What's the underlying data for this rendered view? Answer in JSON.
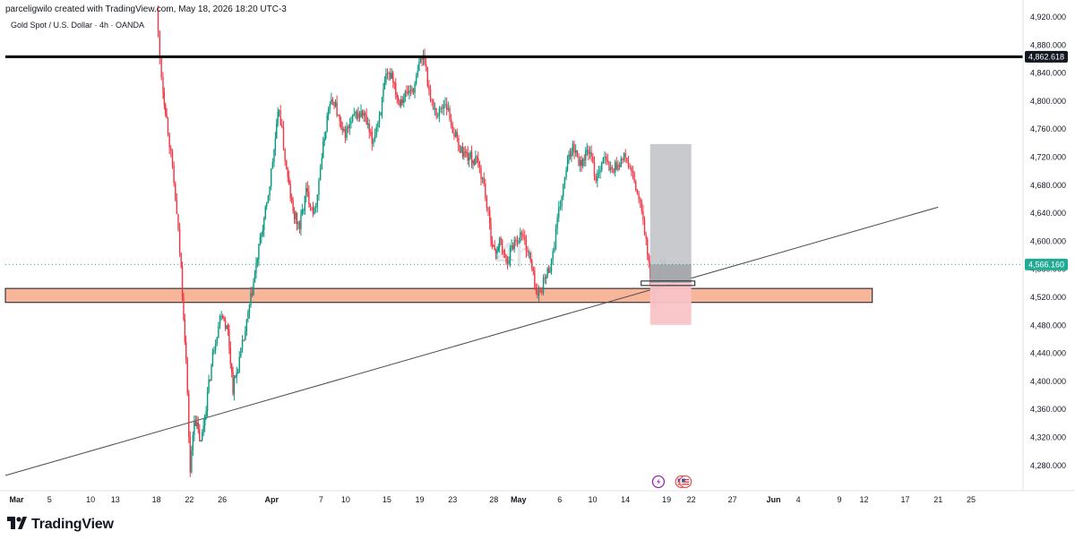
{
  "header": {
    "author_line": "parceligwilo created with TradingView.com, May 18, 2026 18:20 UTC-3",
    "symbol_line": "Gold Spot / U.S. Dollar · 4h · OANDA"
  },
  "watermark": "4h",
  "brand": {
    "name": "TradingView",
    "logo_icon": "tradingview-logo-icon"
  },
  "event_icons": [
    "lightning-icon",
    "us-flag-icon"
  ],
  "colors": {
    "up_candle": "#089981",
    "down_candle": "#f23645",
    "resistance_line": "#000000",
    "zone_fill": "#f7b59a",
    "target_box": "#c6c7cb",
    "stop_box": "#f9c3c7",
    "price_label_current": "#22ab94",
    "price_label_resistance": "#131722"
  },
  "chart_data": {
    "type": "candlestick",
    "symbol": "Gold Spot / U.S. Dollar",
    "timeframe": "4h",
    "exchange": "OANDA",
    "ylim": [
      4240,
      4930
    ],
    "y_ticks": [
      "4,920.000",
      "4,880.000",
      "4,840.000",
      "4,800.000",
      "4,760.000",
      "4,720.000",
      "4,680.000",
      "4,640.000",
      "4,600.000",
      "4,560.000",
      "4,520.000",
      "4,480.000",
      "4,440.000",
      "4,400.000",
      "4,360.000",
      "4,320.000",
      "4,280.000"
    ],
    "x_ticks": [
      {
        "label": "Mar",
        "day": 1,
        "bold": true
      },
      {
        "label": "5",
        "day": 5
      },
      {
        "label": "10",
        "day": 10
      },
      {
        "label": "13",
        "day": 13
      },
      {
        "label": "18",
        "day": 18
      },
      {
        "label": "22",
        "day": 22
      },
      {
        "label": "26",
        "day": 26
      },
      {
        "label": "Apr",
        "day": 32,
        "bold": true
      },
      {
        "label": "7",
        "day": 38
      },
      {
        "label": "10",
        "day": 41
      },
      {
        "label": "15",
        "day": 46
      },
      {
        "label": "19",
        "day": 50
      },
      {
        "label": "23",
        "day": 54
      },
      {
        "label": "28",
        "day": 59
      },
      {
        "label": "May",
        "day": 62,
        "bold": true
      },
      {
        "label": "6",
        "day": 67
      },
      {
        "label": "10",
        "day": 71
      },
      {
        "label": "14",
        "day": 75
      },
      {
        "label": "19",
        "day": 80
      },
      {
        "label": "22",
        "day": 83
      },
      {
        "label": "27",
        "day": 88
      },
      {
        "label": "Jun",
        "day": 93,
        "bold": true
      },
      {
        "label": "4",
        "day": 96
      },
      {
        "label": "9",
        "day": 101
      },
      {
        "label": "12",
        "day": 104
      },
      {
        "label": "17",
        "day": 109
      },
      {
        "label": "21",
        "day": 113
      },
      {
        "label": "25",
        "day": 117
      }
    ],
    "resistance": {
      "price": 4862.618,
      "label": "4,862.618"
    },
    "current_price": {
      "price": 4566.16,
      "label": "4,566.160"
    },
    "demand_zone": {
      "from_day": 0,
      "to_day": 105,
      "low": 4512,
      "high": 4532
    },
    "trendline": {
      "p1": {
        "day": 0,
        "price": 4265
      },
      "p2": {
        "day": 113,
        "price": 4648
      }
    },
    "position": {
      "from_day": 78,
      "to_day": 83,
      "entry": 4540,
      "target": 4738,
      "stop": 4480
    },
    "path": [
      [
        18,
        4930
      ],
      [
        18.4,
        4860
      ],
      [
        18.8,
        4815
      ],
      [
        19.4,
        4760
      ],
      [
        20.3,
        4660
      ],
      [
        21,
        4560
      ],
      [
        21.6,
        4430
      ],
      [
        22.1,
        4270
      ],
      [
        22.6,
        4350
      ],
      [
        23.4,
        4310
      ],
      [
        24.2,
        4380
      ],
      [
        25,
        4450
      ],
      [
        25.9,
        4500
      ],
      [
        26.7,
        4470
      ],
      [
        27.3,
        4390
      ],
      [
        27.9,
        4420
      ],
      [
        28.8,
        4470
      ],
      [
        29.8,
        4540
      ],
      [
        30.6,
        4600
      ],
      [
        31.4,
        4650
      ],
      [
        32.3,
        4730
      ],
      [
        32.9,
        4790
      ],
      [
        33.8,
        4700
      ],
      [
        34.6,
        4640
      ],
      [
        35.4,
        4620
      ],
      [
        36.2,
        4670
      ],
      [
        37.2,
        4640
      ],
      [
        38.1,
        4720
      ],
      [
        38.9,
        4790
      ],
      [
        39.6,
        4800
      ],
      [
        40.6,
        4750
      ],
      [
        41.3,
        4760
      ],
      [
        42.2,
        4780
      ],
      [
        43.2,
        4780
      ],
      [
        44.2,
        4740
      ],
      [
        45.1,
        4780
      ],
      [
        45.9,
        4830
      ],
      [
        46.6,
        4840
      ],
      [
        47.4,
        4800
      ],
      [
        48.4,
        4810
      ],
      [
        49.4,
        4820
      ],
      [
        50.1,
        4860
      ],
      [
        50.6,
        4860
      ],
      [
        51.3,
        4800
      ],
      [
        52.2,
        4780
      ],
      [
        53.1,
        4800
      ],
      [
        54,
        4760
      ],
      [
        54.9,
        4730
      ],
      [
        56,
        4720
      ],
      [
        57.1,
        4710
      ],
      [
        57.8,
        4680
      ],
      [
        58.5,
        4620
      ],
      [
        59.1,
        4580
      ],
      [
        59.7,
        4600
      ],
      [
        60.5,
        4570
      ],
      [
        61.5,
        4600
      ],
      [
        62.4,
        4610
      ],
      [
        63.3,
        4580
      ],
      [
        64.3,
        4520
      ],
      [
        65.2,
        4545
      ],
      [
        66,
        4570
      ],
      [
        66.9,
        4640
      ],
      [
        67.8,
        4700
      ],
      [
        68.6,
        4740
      ],
      [
        69.5,
        4710
      ],
      [
        70.5,
        4730
      ],
      [
        71.4,
        4690
      ],
      [
        72.3,
        4720
      ],
      [
        73.2,
        4700
      ],
      [
        74.1,
        4710
      ],
      [
        75,
        4720
      ],
      [
        75.9,
        4690
      ],
      [
        76.8,
        4650
      ],
      [
        77.5,
        4600
      ],
      [
        78,
        4545
      ],
      [
        78.4,
        4520
      ],
      [
        78.8,
        4540
      ],
      [
        79.3,
        4560
      ],
      [
        79.8,
        4566.16
      ]
    ]
  }
}
